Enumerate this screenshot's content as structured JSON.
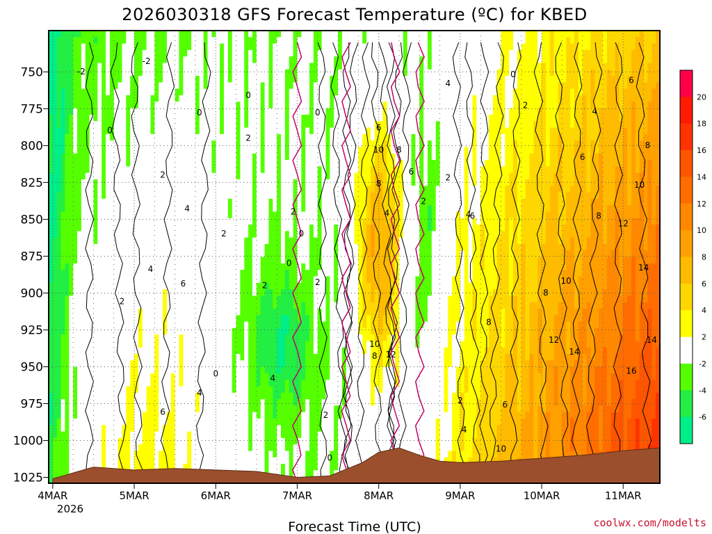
{
  "chart_data": {
    "type": "heatmap",
    "title": "2026030318 GFS Forecast Temperature (ºC) for KBED",
    "xlabel": "Forecast Time (UTC)",
    "ylabel": "",
    "credit": "coolwx.com/modelts",
    "x_tick_labels": [
      "4MAR",
      "5MAR",
      "6MAR",
      "7MAR",
      "8MAR",
      "9MAR",
      "10MAR",
      "11MAR"
    ],
    "x_year_label": "2026",
    "x_range_days": [
      -0.05,
      7.45
    ],
    "y_tick_labels": [
      "750",
      "775",
      "800",
      "825",
      "850",
      "875",
      "900",
      "925",
      "950",
      "975",
      "1000",
      "1025"
    ],
    "y_range_hpa": [
      722,
      1029
    ],
    "colorbar": {
      "labels": [
        "20",
        "18",
        "16",
        "14",
        "12",
        "10",
        "8",
        "6",
        "4",
        "2",
        "-2",
        "-4",
        "-6"
      ],
      "bins": [
        {
          "lo": 20,
          "hi": 22,
          "color": "#ff0048"
        },
        {
          "lo": 18,
          "hi": 20,
          "color": "#ff1a00"
        },
        {
          "lo": 16,
          "hi": 18,
          "color": "#ff3300"
        },
        {
          "lo": 14,
          "hi": 16,
          "color": "#ff5500"
        },
        {
          "lo": 12,
          "hi": 14,
          "color": "#ff6d00"
        },
        {
          "lo": 10,
          "hi": 12,
          "color": "#ff8800"
        },
        {
          "lo": 8,
          "hi": 10,
          "color": "#ffa000"
        },
        {
          "lo": 6,
          "hi": 8,
          "color": "#ffbb00"
        },
        {
          "lo": 4,
          "hi": 6,
          "color": "#ffd700"
        },
        {
          "lo": 2,
          "hi": 4,
          "color": "#ffff00"
        },
        {
          "lo": -2,
          "hi": 2,
          "color": "#ffffff"
        },
        {
          "lo": -4,
          "hi": -2,
          "color": "#55ff00"
        },
        {
          "lo": -6,
          "hi": -4,
          "color": "#22ee44"
        },
        {
          "lo": -8,
          "hi": -6,
          "color": "#00ee88"
        }
      ]
    },
    "ground_color": "#9c4f2c",
    "surface_pressure": {
      "days": [
        0,
        0.5,
        1.0,
        1.5,
        2.0,
        2.5,
        3.0,
        3.4,
        3.8,
        4.0,
        4.25,
        4.5,
        4.75,
        5.0,
        5.5,
        6.0,
        6.5,
        7.0,
        7.45
      ],
      "hpa": [
        1026,
        1018,
        1020,
        1019,
        1020,
        1021,
        1025,
        1024,
        1015,
        1008,
        1005,
        1010,
        1014,
        1015,
        1014,
        1012,
        1010,
        1007,
        1005
      ]
    },
    "freezing_line_days": [
      3.0,
      3.6,
      4.2,
      4.5
    ],
    "contour_labels": [
      {
        "t": 0.35,
        "p": 750,
        "v": "-2"
      },
      {
        "t": 1.15,
        "p": 743,
        "v": "-2"
      },
      {
        "t": 0.7,
        "p": 790,
        "v": "0"
      },
      {
        "t": 1.8,
        "p": 778,
        "v": "0"
      },
      {
        "t": 2.4,
        "p": 766,
        "v": "0"
      },
      {
        "t": 3.25,
        "p": 778,
        "v": "0"
      },
      {
        "t": 5.65,
        "p": 752,
        "v": "0"
      },
      {
        "t": 2.9,
        "p": 880,
        "v": "0"
      },
      {
        "t": 3.05,
        "p": 860,
        "v": "0"
      },
      {
        "t": 3.4,
        "p": 1012,
        "v": "0"
      },
      {
        "t": 2.0,
        "p": 955,
        "v": "0"
      },
      {
        "t": 1.35,
        "p": 820,
        "v": "2"
      },
      {
        "t": 2.4,
        "p": 795,
        "v": "2"
      },
      {
        "t": 2.1,
        "p": 860,
        "v": "2"
      },
      {
        "t": 2.95,
        "p": 845,
        "v": "2"
      },
      {
        "t": 2.6,
        "p": 895,
        "v": "2"
      },
      {
        "t": 3.25,
        "p": 893,
        "v": "2"
      },
      {
        "t": 3.35,
        "p": 983,
        "v": "2"
      },
      {
        "t": 4.85,
        "p": 822,
        "v": "2"
      },
      {
        "t": 5.0,
        "p": 973,
        "v": "2"
      },
      {
        "t": 5.8,
        "p": 773,
        "v": "2"
      },
      {
        "t": 4.55,
        "p": 838,
        "v": "2"
      },
      {
        "t": 0.85,
        "p": 906,
        "v": "2"
      },
      {
        "t": 4.1,
        "p": 846,
        "v": "4"
      },
      {
        "t": 1.65,
        "p": 843,
        "v": "4"
      },
      {
        "t": 1.2,
        "p": 884,
        "v": "4"
      },
      {
        "t": 1.8,
        "p": 968,
        "v": "4"
      },
      {
        "t": 4.85,
        "p": 758,
        "v": "4"
      },
      {
        "t": 5.1,
        "p": 847,
        "v": "4"
      },
      {
        "t": 5.05,
        "p": 993,
        "v": "4"
      },
      {
        "t": 6.65,
        "p": 777,
        "v": "4"
      },
      {
        "t": 2.7,
        "p": 958,
        "v": "4"
      },
      {
        "t": 1.6,
        "p": 894,
        "v": "6"
      },
      {
        "t": 1.35,
        "p": 981,
        "v": "6"
      },
      {
        "t": 4.0,
        "p": 788,
        "v": "6"
      },
      {
        "t": 4.4,
        "p": 818,
        "v": "6"
      },
      {
        "t": 5.15,
        "p": 848,
        "v": "6"
      },
      {
        "t": 5.55,
        "p": 976,
        "v": "6"
      },
      {
        "t": 6.5,
        "p": 808,
        "v": "6"
      },
      {
        "t": 7.1,
        "p": 756,
        "v": "6"
      },
      {
        "t": 4.0,
        "p": 826,
        "v": "8"
      },
      {
        "t": 4.25,
        "p": 803,
        "v": "8"
      },
      {
        "t": 3.95,
        "p": 943,
        "v": "8"
      },
      {
        "t": 5.35,
        "p": 920,
        "v": "8"
      },
      {
        "t": 6.05,
        "p": 900,
        "v": "8"
      },
      {
        "t": 6.7,
        "p": 848,
        "v": "8"
      },
      {
        "t": 7.3,
        "p": 800,
        "v": "8"
      },
      {
        "t": 4.0,
        "p": 803,
        "v": "10"
      },
      {
        "t": 3.95,
        "p": 935,
        "v": "10"
      },
      {
        "t": 6.3,
        "p": 892,
        "v": "10"
      },
      {
        "t": 7.2,
        "p": 827,
        "v": "10"
      },
      {
        "t": 5.5,
        "p": 1006,
        "v": "10"
      },
      {
        "t": 4.15,
        "p": 942,
        "v": "12"
      },
      {
        "t": 6.15,
        "p": 932,
        "v": "12"
      },
      {
        "t": 7.0,
        "p": 853,
        "v": "12"
      },
      {
        "t": 6.4,
        "p": 940,
        "v": "14"
      },
      {
        "t": 7.25,
        "p": 883,
        "v": "14"
      },
      {
        "t": 7.35,
        "p": 932,
        "v": "14"
      },
      {
        "t": 7.1,
        "p": 953,
        "v": "16"
      }
    ]
  }
}
